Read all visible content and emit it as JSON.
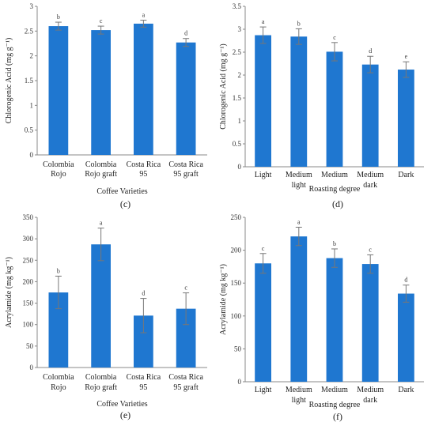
{
  "chart_data": [
    {
      "panel": "(c)",
      "type": "bar",
      "categories": [
        "Colombia\nRojo",
        "Colombia\nRojo graft",
        "Costa Rica\n95",
        "Costa Rica\n95 graft"
      ],
      "values": [
        2.6,
        2.52,
        2.65,
        2.27
      ],
      "errors": [
        0.08,
        0.08,
        0.07,
        0.08
      ],
      "letters": [
        "b",
        "c",
        "a",
        "d"
      ],
      "ylabel": "Chlorogenic Acid (mg g⁻¹)",
      "xlabel": "Coffee Varieties",
      "ylim": [
        0,
        3
      ],
      "yticks": [
        0,
        0.5,
        1,
        1.5,
        2,
        2.5,
        3
      ],
      "ytick_labels": [
        "0",
        "0.5",
        "1",
        "1.5",
        "2",
        "2.5",
        "3"
      ],
      "color": "#1f77d0"
    },
    {
      "panel": "(d)",
      "type": "bar",
      "categories": [
        "Light",
        "Medium\nlight",
        "Medium",
        "Medium\ndark",
        "Dark"
      ],
      "values": [
        2.87,
        2.84,
        2.51,
        2.23,
        2.12
      ],
      "errors": [
        0.18,
        0.17,
        0.2,
        0.18,
        0.17
      ],
      "letters": [
        "a",
        "b",
        "c",
        "d",
        "e"
      ],
      "ylabel": "Chlorogenic Acid (mg g⁻¹)",
      "xlabel": "Roasting degree",
      "ylim": [
        0,
        3.5
      ],
      "yticks": [
        0,
        0.5,
        1,
        1.5,
        2,
        2.5,
        3,
        3.5
      ],
      "ytick_labels": [
        "0",
        "0.5",
        "1",
        "1.5",
        "2",
        "2.5",
        "3",
        "3.5"
      ],
      "color": "#1f77d0"
    },
    {
      "panel": "(e)",
      "type": "bar",
      "categories": [
        "Colombia\nRojo",
        "Colombia\nRojo graft",
        "Costa Rica\n95",
        "Costa Rica\n95 graft"
      ],
      "values": [
        175,
        287,
        121,
        137
      ],
      "errors": [
        38,
        38,
        40,
        37
      ],
      "letters": [
        "b",
        "a",
        "d",
        "c"
      ],
      "ylabel": "Acrylamide (mg kg⁻¹)",
      "xlabel": "Coffee Varieties",
      "ylim": [
        0,
        350
      ],
      "yticks": [
        0,
        50,
        100,
        150,
        200,
        250,
        300,
        350
      ],
      "ytick_labels": [
        "0",
        "50",
        "100",
        "150",
        "200",
        "250",
        "300",
        "350"
      ],
      "color": "#1f77d0"
    },
    {
      "panel": "(f)",
      "type": "bar",
      "categories": [
        "Light",
        "Medium\nlight",
        "Medium",
        "Medium\ndark",
        "Dark"
      ],
      "values": [
        180,
        221,
        188,
        179,
        134
      ],
      "errors": [
        15,
        14,
        14,
        14,
        13
      ],
      "letters": [
        "c",
        "a",
        "b",
        "c",
        "d"
      ],
      "ylabel": "Acrylamide (mg kg⁻¹)",
      "xlabel": "Roasting degree",
      "ylim": [
        0,
        250
      ],
      "yticks": [
        0,
        50,
        100,
        150,
        200,
        250
      ],
      "ytick_labels": [
        "0",
        "50",
        "100",
        "150",
        "200",
        "250"
      ],
      "color": "#1f77d0"
    }
  ]
}
